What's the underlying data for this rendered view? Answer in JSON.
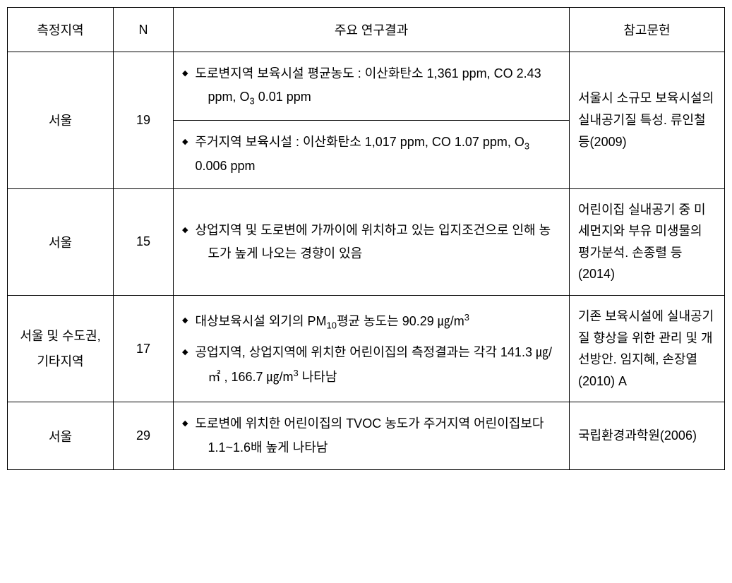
{
  "header": {
    "region": "측정지역",
    "n": "N",
    "results": "주요 연구결과",
    "ref": "참고문헌"
  },
  "rows": {
    "r1": {
      "region": "서울",
      "n": "19",
      "b1a": "도로변지역 보육시설  평균농도 : 이산화탄소  1,361 ppm, CO 2.43 ppm, O",
      "b1b": " 0.01 ppm",
      "b2a": "주거지역 보육시설 : 이산화탄소 1,017 ppm, CO 1.07 ppm, O",
      "b2b": " 0.006 ppm",
      "ref": "서울시 소규모 보육시설의 실내공기질 특성. 류인철 등(2009)"
    },
    "r2": {
      "region": "서울",
      "n": "15",
      "b1": "상업지역 및 도로변에 가까이에 위치하고 있는 입지조건으로 인해 농도가 높게 나오는 경향이 있음",
      "ref": "어린이집 실내공기 중 미세먼지와 부유 미생물의 평가분석. 손종렬 등 (2014)"
    },
    "r3": {
      "region": "서울 및 수도권, 기타지역",
      "n": "17",
      "b1a": "대상보육시설 외기의 PM",
      "b1b": "평균 농도는 90.29 ㎍/m",
      "b2a": "공업지역, 상업지역에 위치한 어린이집의 측정결과는 각각 141.3 ㎍/㎡ , 166.7 ㎍/m",
      "b2b": " 나타남",
      "ref": "기존 보육시설에 실내공기질 향상을 위한 관리 및 개선방안. 임지혜, 손장열(2010) A"
    },
    "r4": {
      "region": "서울",
      "n": "29",
      "b1": "도로변에 위치한 어린이집의 TVOC 농도가 주거지역 어린이집보다 1.1~1.6배 높게 나타남",
      "ref": "국립환경과학원(2006)"
    }
  },
  "sym": {
    "sub3": "3",
    "sub10": "10",
    "sup3": "3"
  }
}
